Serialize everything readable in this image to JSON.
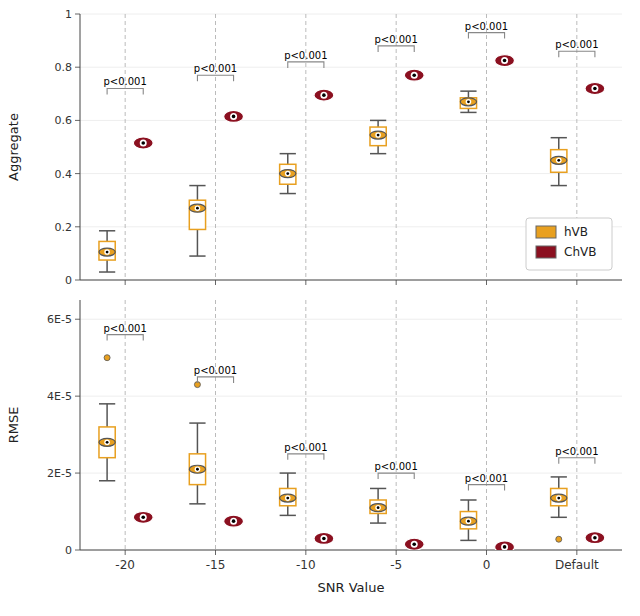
{
  "chart_data": [
    {
      "type": "box",
      "ylabel": "Aggregate",
      "categories": [
        "-20",
        "-15",
        "-10",
        "-5",
        "0",
        "Default"
      ],
      "tick_labels": "y",
      "grid": "x",
      "legend": "lower right",
      "ylim": [
        0,
        1.0
      ],
      "yticks": [
        0,
        0.2,
        0.4,
        0.6,
        0.8,
        1.0
      ],
      "series": [
        {
          "name": "hVB",
          "type": "box",
          "color": "#E8A020",
          "marker": "eye",
          "medians": [
            0.105,
            0.27,
            0.4,
            0.545,
            0.67,
            0.45
          ],
          "q1": [
            0.075,
            0.19,
            0.36,
            0.505,
            0.645,
            0.405
          ],
          "q3": [
            0.145,
            0.3,
            0.435,
            0.575,
            0.685,
            0.49
          ],
          "whislo": [
            0.03,
            0.09,
            0.325,
            0.475,
            0.63,
            0.355
          ],
          "whishi": [
            0.185,
            0.355,
            0.475,
            0.6,
            0.71,
            0.535
          ],
          "fliers": [
            [],
            [],
            [],
            [],
            [],
            []
          ]
        },
        {
          "name": "ChVB",
          "type": "scatter",
          "color": "#8B1020",
          "marker": "eye",
          "values": [
            0.515,
            0.615,
            0.695,
            0.77,
            0.825,
            0.72
          ]
        }
      ],
      "annotations": [
        {
          "text": "p<0.001",
          "y": 0.72
        },
        {
          "text": "p<0.001",
          "y": 0.77
        },
        {
          "text": "p<0.001",
          "y": 0.82
        },
        {
          "text": "p<0.001",
          "y": 0.88
        },
        {
          "text": "p<0.001",
          "y": 0.93
        },
        {
          "text": "p<0.001",
          "y": 0.86
        }
      ]
    },
    {
      "type": "box",
      "ylabel": "RMSE",
      "xlabel": "SNR Value",
      "categories": [
        "-20",
        "-15",
        "-10",
        "-5",
        "0",
        "Default"
      ],
      "grid": "x",
      "ylim": [
        0,
        6.5e-05
      ],
      "yticks": [
        0,
        {
          "value": 2e-05,
          "label": "2E-5"
        },
        {
          "value": 4e-05,
          "label": "4E-5"
        },
        {
          "value": 6e-05,
          "label": "6E-5"
        }
      ],
      "series": [
        {
          "name": "hVB",
          "type": "box",
          "color": "#E8A020",
          "marker": "eye",
          "medians": [
            2.8e-05,
            2.1e-05,
            1.35e-05,
            1.1e-05,
            7.5e-06,
            1.35e-05
          ],
          "q1": [
            2.4e-05,
            1.7e-05,
            1.15e-05,
            9.5e-06,
            5.5e-06,
            1.15e-05
          ],
          "q3": [
            3.2e-05,
            2.5e-05,
            1.6e-05,
            1.3e-05,
            1e-05,
            1.6e-05
          ],
          "whislo": [
            1.8e-05,
            1.2e-05,
            9e-06,
            7e-06,
            2.5e-06,
            8.5e-06
          ],
          "whishi": [
            3.8e-05,
            3.3e-05,
            2e-05,
            1.6e-05,
            1.3e-05,
            1.9e-05
          ],
          "fliers": [
            [
              5e-05
            ],
            [
              4.3e-05
            ],
            [],
            [],
            [],
            [
              2.8e-06
            ]
          ]
        },
        {
          "name": "ChVB",
          "type": "scatter",
          "color": "#8B1020",
          "marker": "eye",
          "values": [
            8.5e-06,
            7.5e-06,
            3e-06,
            1.5e-06,
            8e-07,
            3.2e-06
          ]
        }
      ],
      "annotations": [
        {
          "text": "p<0.001",
          "y": 5.6e-05
        },
        {
          "text": "p<0.001",
          "y": 4.5e-05
        },
        {
          "text": "p<0.001",
          "y": 2.5e-05
        },
        {
          "text": "p<0.001",
          "y": 2e-05
        },
        {
          "text": "p<0.001",
          "y": 1.7e-05
        },
        {
          "text": "p<0.001",
          "y": 2.4e-05
        }
      ]
    }
  ]
}
